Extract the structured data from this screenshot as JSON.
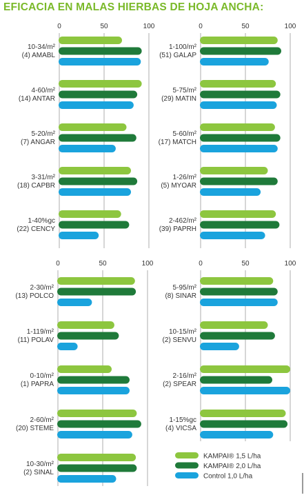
{
  "title": "EFICACIA EN MALAS HIERBAS DE HOJA ANCHA:",
  "colors": {
    "title": "#7ab929",
    "light_green": "#8dc63f",
    "dark_green": "#1f7a3a",
    "blue": "#1aa3dd",
    "grid": "#9a9a9a"
  },
  "chart_data": [
    {
      "type": "bar",
      "xlim": [
        0,
        100
      ],
      "ticks": [
        0,
        50,
        100
      ],
      "categories": [
        [
          "10-34/m²",
          "(4) AMABL"
        ],
        [
          "4-60/m²",
          "(14) ANTAR"
        ],
        [
          "5-20/m²",
          "(7) ANGAR"
        ],
        [
          "3-31/m²",
          "(18) CAPBR"
        ],
        [
          "1-40%gc",
          "(22) CENCY"
        ]
      ],
      "series": [
        {
          "name": "KAMPAI® 1,5 L/ha",
          "values": [
            70,
            92,
            75,
            80,
            69
          ]
        },
        {
          "name": "KAMPAI® 2,0 L/ha",
          "values": [
            92,
            87,
            86,
            87,
            78
          ]
        },
        {
          "name": "Control 1,0 L/ha",
          "values": [
            91,
            83,
            63,
            80,
            44
          ]
        }
      ]
    },
    {
      "type": "bar",
      "xlim": [
        0,
        100
      ],
      "ticks": [
        0,
        50,
        100
      ],
      "categories": [
        [
          "1-100/m²",
          "(51) GALAP"
        ],
        [
          "5-75/m²",
          "(29) MATIN"
        ],
        [
          "5-60/m²",
          "(17) MATCH"
        ],
        [
          "1-26/m²",
          "(5) MYOAR"
        ],
        [
          "2-462/m²",
          "(39) PAPRH"
        ]
      ],
      "series": [
        {
          "name": "KAMPAI® 1,5 L/ha",
          "values": [
            86,
            84,
            83,
            75,
            84
          ]
        },
        {
          "name": "KAMPAI® 2,0 L/ha",
          "values": [
            90,
            89,
            89,
            86,
            88
          ]
        },
        {
          "name": "Control 1,0 L/ha",
          "values": [
            76,
            85,
            86,
            67,
            72
          ]
        }
      ]
    },
    {
      "type": "bar",
      "xlim": [
        0,
        100
      ],
      "ticks": [
        0,
        50,
        100
      ],
      "categories": [
        [
          "2-30/m²",
          "(13) POLCO"
        ],
        [
          "1-119/m²",
          "(11) POLAV"
        ],
        [
          "0-10/m²",
          "(1) PAPRA"
        ],
        [
          "2-60/m²",
          "(20) STEME"
        ],
        [
          "10-30/m²",
          "(2) SINAL"
        ]
      ],
      "series": [
        {
          "name": "KAMPAI® 1,5 L/ha",
          "values": [
            86,
            63,
            60,
            88,
            87
          ]
        },
        {
          "name": "KAMPAI® 2,0 L/ha",
          "values": [
            87,
            68,
            80,
            93,
            88
          ]
        },
        {
          "name": "Control 1,0 L/ha",
          "values": [
            38,
            22,
            80,
            83,
            65
          ]
        }
      ]
    },
    {
      "type": "bar",
      "xlim": [
        0,
        100
      ],
      "ticks": [
        0,
        50,
        100
      ],
      "categories": [
        [
          "5-95/m²",
          "(8) SINAR"
        ],
        [
          "10-15/m²",
          "(2) SENVU"
        ],
        [
          "2-16/m²",
          "(2) SPEAR"
        ],
        [
          "1-15%gc",
          "(4) VICSA"
        ]
      ],
      "series": [
        {
          "name": "KAMPAI® 1,5 L/ha",
          "values": [
            81,
            75,
            100,
            95
          ]
        },
        {
          "name": "KAMPAI® 2,0 L/ha",
          "values": [
            86,
            83,
            80,
            97
          ]
        },
        {
          "name": "Control 1,0 L/ha",
          "values": [
            86,
            43,
            100,
            81
          ]
        }
      ]
    }
  ],
  "legend": [
    {
      "label": "KAMPAI® 1,5 L/ha",
      "color": "#8dc63f"
    },
    {
      "label": "KAMPAI® 2,0 L/ha",
      "color": "#1f7a3a"
    },
    {
      "label": "Control 1,0 L/ha",
      "color": "#1aa3dd"
    }
  ]
}
